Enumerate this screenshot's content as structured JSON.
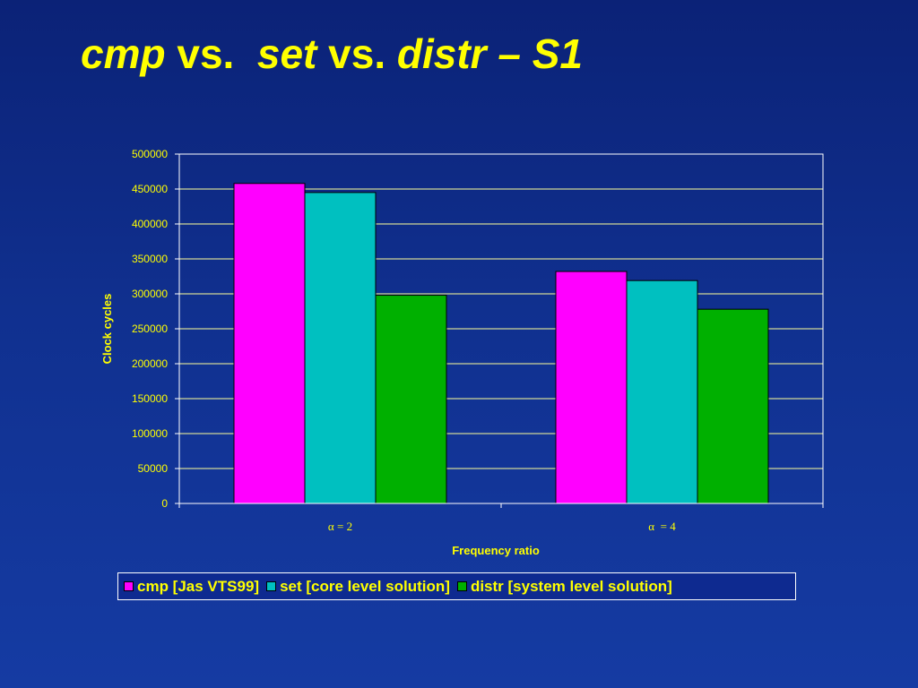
{
  "slide": {
    "title_parts": [
      "cmp",
      " vs.  ",
      "set",
      " vs. ",
      "distr – S1"
    ]
  },
  "colors": {
    "background": "#10308f",
    "title": "#ffff00",
    "axis_text": "#ffff00",
    "gridline": "#ffff99",
    "plot_border": "#ffffff"
  },
  "chart_data": {
    "type": "bar",
    "categories": [
      "α = 2",
      "α  = 4"
    ],
    "series": [
      {
        "name": "cmp [Jas VTS99]",
        "values": [
          458000,
          332000
        ],
        "color": "#ff00ff"
      },
      {
        "name": "set [core level solution]",
        "values": [
          445000,
          319000
        ],
        "color": "#00c0c0"
      },
      {
        "name": "distr [system level solution]",
        "values": [
          298000,
          278000
        ],
        "color": "#00b000"
      }
    ],
    "xlabel": "Frequency ratio",
    "ylabel": "Clock cycles",
    "ylim": [
      0,
      500000
    ],
    "yticks": [
      "0",
      "50000",
      "100000",
      "150000",
      "200000",
      "250000",
      "300000",
      "350000",
      "400000",
      "450000",
      "500000"
    ],
    "grid": true,
    "legend_position": "bottom"
  }
}
